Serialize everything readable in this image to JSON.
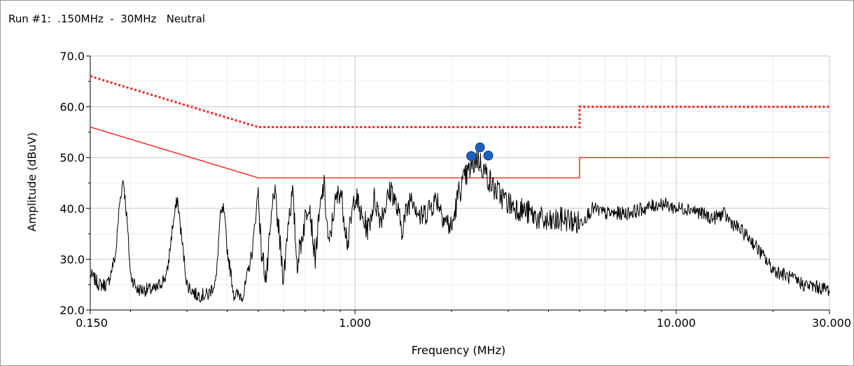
{
  "window": {
    "title": "Run #1:  .150MHz  -  30MHz   Neutral"
  },
  "chart_data": {
    "type": "line",
    "title": "Run #1:  .150MHz  -  30MHz   Neutral",
    "xlabel": "Frequency (MHz)",
    "ylabel": "Amplitude (dBuV)",
    "x_scale": "log",
    "xlim": [
      0.15,
      30
    ],
    "ylim": [
      20,
      70
    ],
    "grid": true,
    "x_ticks": [
      0.15,
      1,
      10,
      30
    ],
    "x_tick_labels": [
      "0.150",
      "1.000",
      "10.000",
      "30.000"
    ],
    "y_ticks": [
      20,
      30,
      40,
      50,
      60,
      70
    ],
    "y_tick_labels": [
      "20.0",
      "30.0",
      "40.0",
      "50.0",
      "60.0",
      "70.0"
    ],
    "colors": {
      "trace": "#000000",
      "limit": "#ff2020",
      "marker": "#1f5fbf",
      "grid_major": "#c8c8c8",
      "grid_minor": "#eeeeee"
    },
    "series": [
      {
        "style": "dotted",
        "color": "#ff2020",
        "x": [
          0.15,
          0.5,
          0.5,
          5.0,
          5.0,
          30
        ],
        "values": [
          66,
          56,
          56,
          56,
          60,
          60
        ]
      },
      {
        "style": "solid",
        "color": "#ff2020",
        "x": [
          0.15,
          0.5,
          0.5,
          5.0,
          5.0,
          30
        ],
        "values": [
          56,
          46,
          46,
          46,
          50,
          50
        ]
      },
      {
        "style": "noisy-trace",
        "color": "#000000",
        "x": [
          0.15,
          0.16,
          0.17,
          0.18,
          0.185,
          0.19,
          0.195,
          0.2,
          0.21,
          0.22,
          0.24,
          0.26,
          0.27,
          0.28,
          0.29,
          0.3,
          0.32,
          0.35,
          0.37,
          0.38,
          0.39,
          0.4,
          0.42,
          0.45,
          0.48,
          0.5,
          0.51,
          0.53,
          0.56,
          0.58,
          0.6,
          0.62,
          0.64,
          0.66,
          0.7,
          0.72,
          0.75,
          0.78,
          0.8,
          0.83,
          0.86,
          0.9,
          0.95,
          1.0,
          1.05,
          1.1,
          1.15,
          1.2,
          1.3,
          1.4,
          1.5,
          1.6,
          1.8,
          1.9,
          2.0,
          2.1,
          2.2,
          2.3,
          2.4,
          2.5,
          2.6,
          2.7,
          2.8,
          2.9,
          3.0,
          3.5,
          4.0,
          4.5,
          5.0,
          5.5,
          6.0,
          7.0,
          8.0,
          9.0,
          10.0,
          11.0,
          12.0,
          13.0,
          14.0,
          15.0,
          17.0,
          20.0,
          25.0,
          30.0
        ],
        "values": [
          27,
          25,
          25,
          31,
          41,
          46,
          38,
          27,
          24,
          24,
          24,
          27,
          36,
          42,
          33,
          25,
          23,
          23,
          26,
          38,
          40,
          32,
          23,
          23,
          32,
          44,
          32,
          26,
          44,
          35,
          26,
          38,
          43,
          29,
          38,
          42,
          30,
          40,
          45,
          32,
          40,
          44,
          33,
          43,
          38,
          36,
          42,
          38,
          44,
          36,
          43,
          38,
          42,
          38,
          36,
          43,
          46,
          48,
          50,
          48,
          46,
          44,
          43,
          42,
          41,
          39,
          37,
          38,
          37,
          40,
          39,
          39,
          40,
          41,
          40,
          40,
          39,
          38,
          39,
          37,
          34,
          28,
          25,
          24
        ]
      }
    ],
    "markers": {
      "x": [
        2.3,
        2.45,
        2.6
      ],
      "values": [
        50.3,
        52.0,
        50.4
      ]
    }
  }
}
